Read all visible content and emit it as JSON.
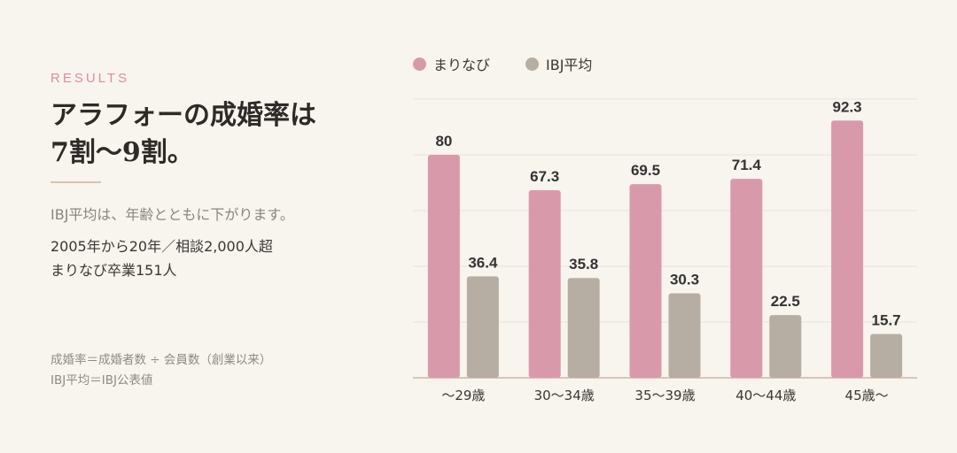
{
  "header": {
    "eyebrow": "RESULTS",
    "title": "アラフォーの成婚率は\n7割〜9割。",
    "description": "IBJ平均は、年齢とともに下がります。",
    "meta_line1": "2005年から20年／相談2,000人超",
    "meta_line2": "まりなび卒業151人"
  },
  "notes": {
    "line1": "成婚率＝成婚者数 ÷ 会員数（創業以来）",
    "line2": "IBJ平均＝IBJ公表値"
  },
  "colors": {
    "marinavi": "#d89aaa",
    "ibj": "#b6aea3",
    "grid": "#e8e2da",
    "baseline": "#cdb7a3"
  },
  "chart_data": {
    "type": "bar",
    "categories": [
      "〜29歳",
      "30〜34歳",
      "35〜39歳",
      "40〜44歳",
      "45歳〜"
    ],
    "series": [
      {
        "name": "まりなび",
        "values": [
          80,
          67.3,
          69.5,
          71.4,
          92.3
        ]
      },
      {
        "name": "IBJ平均",
        "values": [
          36.4,
          35.8,
          30.3,
          22.5,
          15.7
        ]
      }
    ],
    "value_labels": [
      [
        "80",
        "67.3",
        "69.5",
        "71.4",
        "92.3"
      ],
      [
        "36.4",
        "35.8",
        "30.3",
        "22.5",
        "15.7"
      ]
    ],
    "ylim": [
      0,
      100
    ],
    "grid": true,
    "legend_position": "top-left"
  }
}
